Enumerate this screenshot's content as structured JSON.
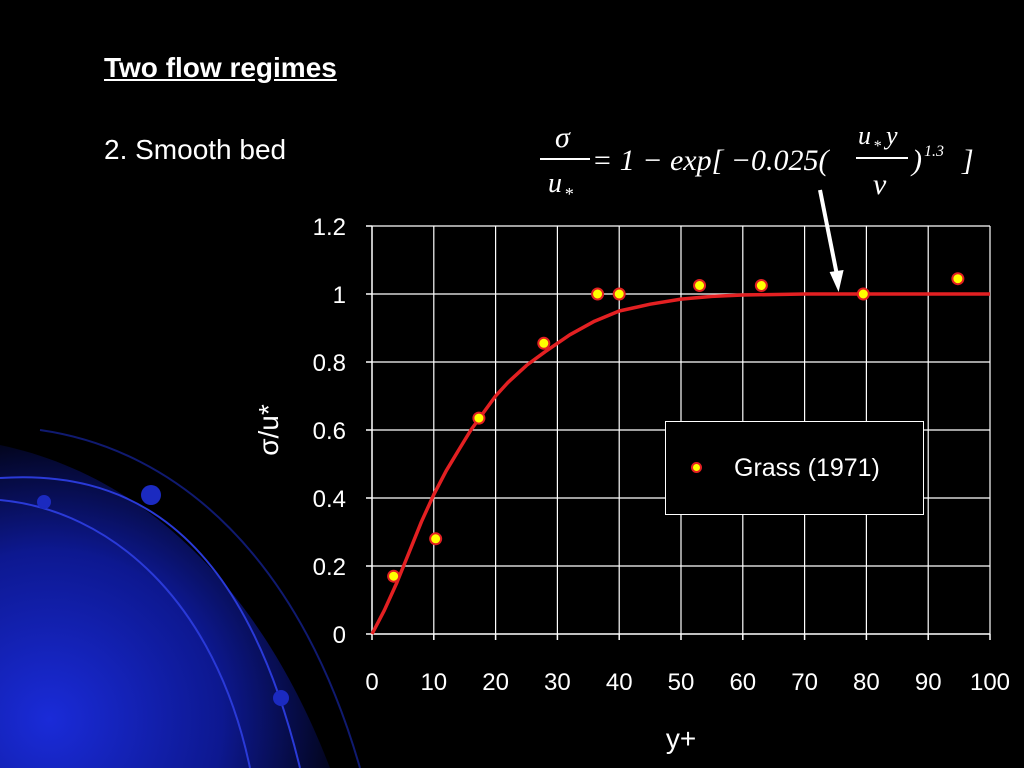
{
  "slide": {
    "heading": "Two flow regimes",
    "subheading": "2. Smooth bed"
  },
  "formula": {
    "lhs_numerator": "σ",
    "lhs_denominator": "u",
    "lhs_denominator_sub": "*",
    "rhs_prefix": "= 1 − exp[ −0.025(",
    "frac_numerator": "u",
    "frac_numerator_sub": "*",
    "frac_numerator_tail": "y",
    "frac_denominator": "ν",
    "rhs_suffix": ")",
    "exponent": "1.3",
    "close": "]"
  },
  "colors": {
    "background": "#000000",
    "curve": "#e32022",
    "marker_fill": "#ffff00",
    "marker_edge": "#e32022",
    "grid": "#ffffff",
    "decoration": "#1a2bd8"
  },
  "chart_data": {
    "type": "scatter",
    "xlabel": "y+",
    "ylabel": "σ/u*",
    "xlim": [
      0,
      100
    ],
    "ylim": [
      0,
      1.2
    ],
    "x_ticks": [
      0,
      10,
      20,
      30,
      40,
      50,
      60,
      70,
      80,
      90,
      100
    ],
    "y_ticks": [
      0,
      0.2,
      0.4,
      0.6,
      0.8,
      1,
      1.2
    ],
    "y_tick_labels": [
      "0",
      "0.2",
      "0.4",
      "0.6",
      "0.8",
      "1",
      "1.2"
    ],
    "grid": true,
    "legend_position": "center-right",
    "series": [
      {
        "name": "Grass (1971)",
        "kind": "points",
        "x": [
          3.5,
          10.3,
          17.3,
          27.8,
          36.5,
          40,
          53,
          63,
          79.5,
          94.8
        ],
        "y": [
          0.17,
          0.28,
          0.635,
          0.855,
          1.0,
          1.0,
          1.025,
          1.025,
          1.0,
          1.045
        ]
      },
      {
        "kind": "line",
        "x": [
          0,
          2,
          4,
          6,
          8,
          10,
          12,
          14,
          16,
          18,
          20,
          22,
          25,
          28,
          32,
          36,
          40,
          45,
          50,
          55,
          60,
          70,
          80,
          90,
          100
        ],
        "y": [
          0,
          0.07,
          0.15,
          0.24,
          0.33,
          0.41,
          0.48,
          0.54,
          0.6,
          0.65,
          0.7,
          0.74,
          0.79,
          0.83,
          0.88,
          0.92,
          0.95,
          0.97,
          0.985,
          0.993,
          0.997,
          1.0,
          1.0,
          1.0,
          1.0
        ]
      }
    ],
    "annotation": {
      "kind": "arrow",
      "from_formula": true,
      "to_x": 75.5,
      "to_y": 1.0
    }
  }
}
